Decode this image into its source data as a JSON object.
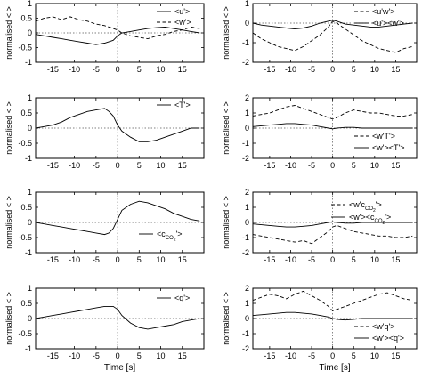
{
  "figure": {
    "ylabel": "normalised < >",
    "xlabel": "Time [s]"
  },
  "chart_data": [
    {
      "type": "line",
      "row": 0,
      "col": 0,
      "xlim": [
        -19,
        20
      ],
      "ylim": [
        -1,
        1
      ],
      "xticks": [
        -15,
        -10,
        -5,
        0,
        5,
        10,
        15
      ],
      "yticks": [
        -1,
        -0.5,
        0,
        0.5,
        1
      ],
      "ytick_labels": [
        "-1",
        "-0.5",
        "0",
        "0.5",
        "1"
      ],
      "show_ylabel": true,
      "show_xlabel": false,
      "series": [
        {
          "name": "<u'>",
          "style": "solid",
          "x": [
            -19,
            -17,
            -15,
            -13,
            -11,
            -9,
            -7,
            -5,
            -3,
            -1,
            0,
            1,
            3,
            5,
            7,
            9,
            11,
            13,
            15,
            17,
            19
          ],
          "y": [
            -0.05,
            -0.1,
            -0.15,
            -0.2,
            -0.25,
            -0.3,
            -0.35,
            -0.4,
            -0.35,
            -0.25,
            -0.1,
            0.0,
            0.05,
            0.1,
            0.15,
            0.18,
            0.2,
            0.15,
            0.1,
            0.05,
            0.0
          ]
        },
        {
          "name": "<w'>",
          "style": "dash",
          "x": [
            -19,
            -17,
            -15,
            -13,
            -11,
            -9,
            -7,
            -5,
            -3,
            -1,
            0,
            1,
            3,
            5,
            7,
            9,
            11,
            13,
            15,
            17,
            19
          ],
          "y": [
            0.4,
            0.5,
            0.55,
            0.45,
            0.55,
            0.45,
            0.4,
            0.3,
            0.25,
            0.15,
            0.1,
            0.0,
            -0.1,
            -0.15,
            -0.2,
            -0.1,
            -0.05,
            0.05,
            0.1,
            0.2,
            0.15
          ]
        }
      ]
    },
    {
      "type": "line",
      "row": 0,
      "col": 1,
      "xlim": [
        -19,
        20
      ],
      "ylim": [
        -2,
        1
      ],
      "xticks": [
        -15,
        -10,
        -5,
        0,
        5,
        10,
        15
      ],
      "yticks": [
        -2,
        -1,
        0,
        1
      ],
      "ytick_labels": [
        "-2",
        "-1",
        "0",
        "1"
      ],
      "show_ylabel": true,
      "show_xlabel": false,
      "series": [
        {
          "name": "<u'w'>",
          "style": "dash",
          "x": [
            -19,
            -17,
            -15,
            -13,
            -11,
            -9,
            -7,
            -5,
            -3,
            -1,
            0,
            1,
            3,
            5,
            7,
            9,
            11,
            13,
            15,
            17,
            19
          ],
          "y": [
            -0.5,
            -0.8,
            -1.0,
            -1.2,
            -1.3,
            -1.4,
            -1.2,
            -0.9,
            -0.6,
            -0.2,
            0.1,
            0.0,
            -0.3,
            -0.6,
            -0.9,
            -1.1,
            -1.3,
            -1.4,
            -1.5,
            -1.3,
            -1.2
          ]
        },
        {
          "name": "<u'><w'>",
          "style": "solid",
          "x": [
            -19,
            -17,
            -15,
            -13,
            -11,
            -9,
            -7,
            -5,
            -3,
            -1,
            0,
            1,
            3,
            5,
            7,
            9,
            11,
            13,
            15,
            17,
            19
          ],
          "y": [
            0.0,
            -0.1,
            -0.15,
            -0.2,
            -0.25,
            -0.3,
            -0.25,
            -0.15,
            0.0,
            0.1,
            0.15,
            0.1,
            -0.05,
            -0.1,
            -0.15,
            -0.2,
            -0.2,
            -0.15,
            -0.1,
            -0.05,
            0.0
          ]
        }
      ]
    },
    {
      "type": "line",
      "row": 1,
      "col": 0,
      "xlim": [
        -19,
        20
      ],
      "ylim": [
        -1,
        1
      ],
      "xticks": [
        -15,
        -10,
        -5,
        0,
        5,
        10,
        15
      ],
      "yticks": [
        -1,
        -0.5,
        0,
        0.5,
        1
      ],
      "ytick_labels": [
        "-1",
        "-0.5",
        "0",
        "0.5",
        "1"
      ],
      "show_ylabel": true,
      "show_xlabel": false,
      "series": [
        {
          "name": "<T'>",
          "style": "solid",
          "x": [
            -19,
            -17,
            -15,
            -13,
            -11,
            -9,
            -7,
            -5,
            -3,
            -2,
            -1,
            0,
            1,
            3,
            5,
            7,
            9,
            11,
            13,
            15,
            17,
            19
          ],
          "y": [
            0.0,
            0.05,
            0.1,
            0.2,
            0.35,
            0.45,
            0.55,
            0.6,
            0.65,
            0.55,
            0.4,
            0.1,
            -0.1,
            -0.3,
            -0.45,
            -0.45,
            -0.4,
            -0.3,
            -0.2,
            -0.1,
            0.0,
            0.0
          ]
        }
      ]
    },
    {
      "type": "line",
      "row": 1,
      "col": 1,
      "xlim": [
        -19,
        20
      ],
      "ylim": [
        -2,
        2
      ],
      "xticks": [
        -15,
        -10,
        -5,
        0,
        5,
        10,
        15
      ],
      "yticks": [
        -2,
        -1,
        0,
        1,
        2
      ],
      "ytick_labels": [
        "-2",
        "-1",
        "0",
        "1",
        "2"
      ],
      "show_ylabel": true,
      "show_xlabel": false,
      "series": [
        {
          "name": "<w'T'>",
          "style": "dash",
          "x": [
            -19,
            -17,
            -15,
            -13,
            -11,
            -9,
            -7,
            -5,
            -3,
            -1,
            0,
            1,
            3,
            5,
            7,
            9,
            11,
            13,
            15,
            17,
            19
          ],
          "y": [
            0.8,
            0.9,
            1.0,
            1.2,
            1.4,
            1.5,
            1.3,
            1.1,
            0.9,
            0.7,
            0.6,
            0.7,
            1.0,
            1.2,
            1.1,
            1.0,
            1.0,
            0.9,
            0.8,
            0.8,
            0.9
          ]
        },
        {
          "name": "<w'><T'>",
          "style": "solid",
          "x": [
            -19,
            -17,
            -15,
            -13,
            -11,
            -9,
            -7,
            -5,
            -3,
            -1,
            0,
            1,
            3,
            5,
            7,
            9,
            11,
            13,
            15,
            17,
            19
          ],
          "y": [
            0.1,
            0.15,
            0.2,
            0.25,
            0.3,
            0.3,
            0.25,
            0.2,
            0.1,
            0.0,
            -0.05,
            0.0,
            0.05,
            0.05,
            0.0,
            0.0,
            0.0,
            0.0,
            0.0,
            0.0,
            0.0
          ]
        }
      ]
    },
    {
      "type": "line",
      "row": 2,
      "col": 0,
      "xlim": [
        -19,
        20
      ],
      "ylim": [
        -1,
        1
      ],
      "xticks": [
        -15,
        -10,
        -5,
        0,
        5,
        10,
        15
      ],
      "yticks": [
        -1,
        -0.5,
        0,
        0.5,
        1
      ],
      "ytick_labels": [
        "-1",
        "-0.5",
        "0",
        "0.5",
        "1"
      ],
      "show_ylabel": true,
      "show_xlabel": false,
      "series": [
        {
          "name": "<c_CO2'>",
          "label_main": "<c",
          "label_sub": "CO",
          "label_subsub": "2",
          "label_end": "'>",
          "style": "solid",
          "x": [
            -19,
            -17,
            -15,
            -13,
            -11,
            -9,
            -7,
            -5,
            -3,
            -2,
            -1,
            0,
            1,
            3,
            5,
            7,
            9,
            11,
            13,
            15,
            17,
            19
          ],
          "y": [
            0.0,
            -0.05,
            -0.1,
            -0.15,
            -0.2,
            -0.25,
            -0.3,
            -0.35,
            -0.4,
            -0.35,
            -0.2,
            0.1,
            0.4,
            0.6,
            0.7,
            0.65,
            0.55,
            0.45,
            0.3,
            0.2,
            0.1,
            0.05
          ]
        }
      ]
    },
    {
      "type": "line",
      "row": 2,
      "col": 1,
      "xlim": [
        -19,
        20
      ],
      "ylim": [
        -2,
        2
      ],
      "xticks": [
        -15,
        -10,
        -5,
        0,
        5,
        10,
        15
      ],
      "yticks": [
        -2,
        -1,
        0,
        1,
        2
      ],
      "ytick_labels": [
        "-2",
        "-1",
        "0",
        "1",
        "2"
      ],
      "show_ylabel": true,
      "show_xlabel": false,
      "series": [
        {
          "name": "<w'c_CO2'>",
          "label_main": "<w'c",
          "label_sub": "CO",
          "label_subsub": "2",
          "label_end": "'>",
          "style": "dash",
          "x": [
            -19,
            -17,
            -15,
            -13,
            -11,
            -9,
            -7,
            -5,
            -3,
            -1,
            0,
            1,
            3,
            5,
            7,
            9,
            11,
            13,
            15,
            17,
            19
          ],
          "y": [
            -0.8,
            -0.9,
            -1.0,
            -1.1,
            -1.2,
            -1.3,
            -1.2,
            -1.4,
            -1.0,
            -0.6,
            -0.3,
            -0.2,
            -0.4,
            -0.6,
            -0.7,
            -0.8,
            -0.9,
            -0.9,
            -1.0,
            -1.0,
            -0.9
          ]
        },
        {
          "name": "<w'><c_CO2'>",
          "label_main": "<w'><c",
          "label_sub": "CO",
          "label_subsub": "2",
          "label_end": "'>",
          "style": "solid",
          "x": [
            -19,
            -17,
            -15,
            -13,
            -11,
            -9,
            -7,
            -5,
            -3,
            -1,
            0,
            1,
            3,
            5,
            7,
            9,
            11,
            13,
            15,
            17,
            19
          ],
          "y": [
            -0.1,
            -0.15,
            -0.2,
            -0.25,
            -0.3,
            -0.3,
            -0.25,
            -0.2,
            -0.1,
            0.0,
            0.05,
            0.0,
            -0.05,
            -0.05,
            0.0,
            0.0,
            0.0,
            0.0,
            0.0,
            0.0,
            0.0
          ]
        }
      ]
    },
    {
      "type": "line",
      "row": 3,
      "col": 0,
      "xlim": [
        -19,
        20
      ],
      "ylim": [
        -1,
        1
      ],
      "xticks": [
        -15,
        -10,
        -5,
        0,
        5,
        10,
        15
      ],
      "yticks": [
        -1,
        -0.5,
        0,
        0.5,
        1
      ],
      "ytick_labels": [
        "-1",
        "-0.5",
        "0",
        "0.5",
        "1"
      ],
      "show_ylabel": true,
      "show_xlabel": true,
      "series": [
        {
          "name": "<q'>",
          "style": "solid",
          "x": [
            -19,
            -17,
            -15,
            -13,
            -11,
            -9,
            -7,
            -5,
            -3,
            -1,
            0,
            1,
            3,
            5,
            7,
            9,
            11,
            13,
            15,
            17,
            19
          ],
          "y": [
            0.0,
            0.05,
            0.1,
            0.15,
            0.2,
            0.25,
            0.3,
            0.35,
            0.4,
            0.4,
            0.3,
            0.1,
            -0.15,
            -0.3,
            -0.35,
            -0.3,
            -0.25,
            -0.2,
            -0.1,
            -0.05,
            0.0
          ]
        }
      ]
    },
    {
      "type": "line",
      "row": 3,
      "col": 1,
      "xlim": [
        -19,
        20
      ],
      "ylim": [
        -2,
        2
      ],
      "xticks": [
        -15,
        -10,
        -5,
        0,
        5,
        10,
        15
      ],
      "yticks": [
        -2,
        -1,
        0,
        1,
        2
      ],
      "ytick_labels": [
        "-2",
        "-1",
        "0",
        "1",
        "2"
      ],
      "show_ylabel": true,
      "show_xlabel": true,
      "series": [
        {
          "name": "<w'q'>",
          "style": "dash",
          "x": [
            -19,
            -17,
            -15,
            -13,
            -11,
            -9,
            -7,
            -5,
            -3,
            -1,
            0,
            1,
            3,
            5,
            7,
            9,
            11,
            13,
            15,
            17,
            19
          ],
          "y": [
            1.2,
            1.4,
            1.6,
            1.5,
            1.3,
            1.6,
            1.8,
            1.5,
            1.2,
            0.8,
            0.5,
            0.6,
            0.8,
            1.0,
            1.2,
            1.4,
            1.6,
            1.7,
            1.5,
            1.3,
            1.2
          ]
        },
        {
          "name": "<w'><q'>",
          "style": "solid",
          "x": [
            -19,
            -17,
            -15,
            -13,
            -11,
            -9,
            -7,
            -5,
            -3,
            -1,
            0,
            1,
            3,
            5,
            7,
            9,
            11,
            13,
            15,
            17,
            19
          ],
          "y": [
            0.2,
            0.25,
            0.3,
            0.35,
            0.4,
            0.4,
            0.35,
            0.3,
            0.2,
            0.1,
            0.0,
            -0.05,
            -0.1,
            -0.05,
            0.0,
            0.0,
            0.0,
            0.0,
            0.0,
            0.0,
            0.0
          ]
        }
      ]
    }
  ]
}
